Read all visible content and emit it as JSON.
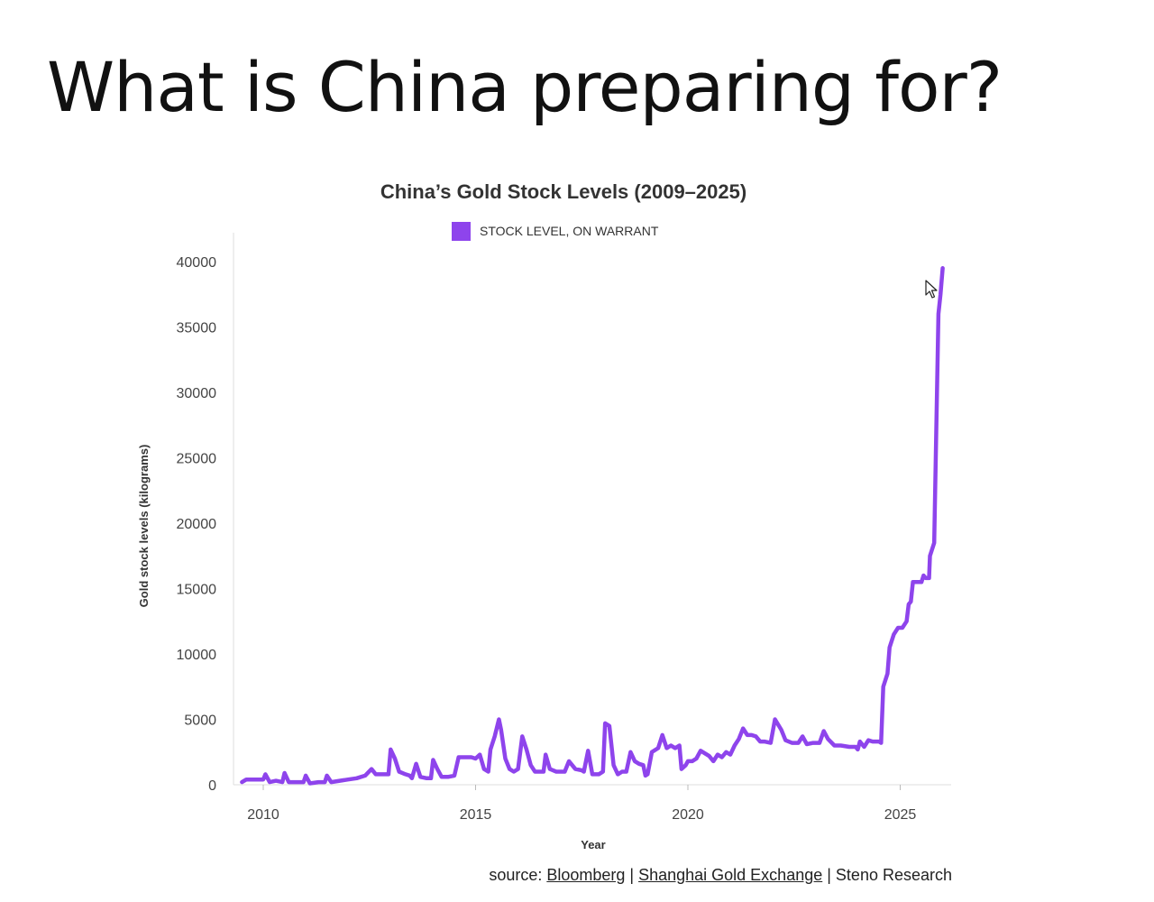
{
  "slide": {
    "title": "What is China preparing for?"
  },
  "colors": {
    "series": "#8e44ec",
    "axis": "#dddddd"
  },
  "source": {
    "prefix": "source: ",
    "links": [
      "Bloomberg",
      "Shanghai Gold Exchange"
    ],
    "separator": " | ",
    "suffix": "Steno Research"
  },
  "chart_data": {
    "type": "line",
    "title": "China’s Gold Stock Levels (2009–2025)",
    "xlabel": "Year",
    "ylabel": "Gold stock levels (kilograms)",
    "xlim": [
      2009.4,
      2026.2
    ],
    "ylim": [
      0,
      40000
    ],
    "xticks": [
      2010,
      2015,
      2020,
      2025
    ],
    "yticks": [
      0,
      5000,
      10000,
      15000,
      20000,
      25000,
      30000,
      35000,
      40000
    ],
    "grid": false,
    "legend": "top-center",
    "series": [
      {
        "name": "STOCK LEVEL, ON WARRANT",
        "points": [
          [
            2009.5,
            200
          ],
          [
            2009.6,
            400
          ],
          [
            2009.8,
            400
          ],
          [
            2010.0,
            400
          ],
          [
            2010.05,
            800
          ],
          [
            2010.15,
            200
          ],
          [
            2010.3,
            300
          ],
          [
            2010.45,
            200
          ],
          [
            2010.5,
            900
          ],
          [
            2010.6,
            200
          ],
          [
            2010.8,
            200
          ],
          [
            2010.95,
            200
          ],
          [
            2011.0,
            700
          ],
          [
            2011.1,
            100
          ],
          [
            2011.3,
            200
          ],
          [
            2011.45,
            200
          ],
          [
            2011.5,
            700
          ],
          [
            2011.6,
            200
          ],
          [
            2011.8,
            300
          ],
          [
            2012.0,
            400
          ],
          [
            2012.2,
            500
          ],
          [
            2012.4,
            700
          ],
          [
            2012.55,
            1200
          ],
          [
            2012.65,
            800
          ],
          [
            2012.8,
            800
          ],
          [
            2012.95,
            800
          ],
          [
            2013.0,
            2700
          ],
          [
            2013.1,
            2000
          ],
          [
            2013.2,
            1000
          ],
          [
            2013.35,
            800
          ],
          [
            2013.45,
            700
          ],
          [
            2013.5,
            500
          ],
          [
            2013.6,
            1600
          ],
          [
            2013.7,
            600
          ],
          [
            2013.85,
            500
          ],
          [
            2013.95,
            500
          ],
          [
            2014.0,
            1900
          ],
          [
            2014.1,
            1200
          ],
          [
            2014.2,
            600
          ],
          [
            2014.35,
            600
          ],
          [
            2014.5,
            700
          ],
          [
            2014.6,
            2100
          ],
          [
            2014.75,
            2100
          ],
          [
            2014.9,
            2100
          ],
          [
            2015.0,
            2000
          ],
          [
            2015.1,
            2300
          ],
          [
            2015.2,
            1200
          ],
          [
            2015.3,
            1000
          ],
          [
            2015.35,
            2700
          ],
          [
            2015.45,
            3700
          ],
          [
            2015.55,
            5000
          ],
          [
            2015.6,
            4200
          ],
          [
            2015.7,
            2000
          ],
          [
            2015.8,
            1200
          ],
          [
            2015.9,
            1000
          ],
          [
            2016.0,
            1200
          ],
          [
            2016.1,
            3700
          ],
          [
            2016.2,
            2700
          ],
          [
            2016.3,
            1500
          ],
          [
            2016.4,
            1000
          ],
          [
            2016.5,
            1000
          ],
          [
            2016.6,
            1000
          ],
          [
            2016.65,
            2300
          ],
          [
            2016.75,
            1200
          ],
          [
            2016.9,
            1000
          ],
          [
            2017.0,
            1000
          ],
          [
            2017.1,
            1000
          ],
          [
            2017.2,
            1800
          ],
          [
            2017.35,
            1200
          ],
          [
            2017.5,
            1100
          ],
          [
            2017.55,
            1000
          ],
          [
            2017.65,
            2600
          ],
          [
            2017.75,
            800
          ],
          [
            2017.9,
            800
          ],
          [
            2018.0,
            1000
          ],
          [
            2018.05,
            4700
          ],
          [
            2018.15,
            4500
          ],
          [
            2018.25,
            1500
          ],
          [
            2018.35,
            800
          ],
          [
            2018.45,
            1000
          ],
          [
            2018.55,
            1000
          ],
          [
            2018.65,
            2500
          ],
          [
            2018.75,
            1800
          ],
          [
            2018.85,
            1600
          ],
          [
            2018.95,
            1500
          ],
          [
            2019.0,
            700
          ],
          [
            2019.05,
            800
          ],
          [
            2019.15,
            2500
          ],
          [
            2019.3,
            2800
          ],
          [
            2019.4,
            3800
          ],
          [
            2019.5,
            2800
          ],
          [
            2019.6,
            3000
          ],
          [
            2019.7,
            2800
          ],
          [
            2019.8,
            3000
          ],
          [
            2019.85,
            1200
          ],
          [
            2019.95,
            1500
          ],
          [
            2020.0,
            1800
          ],
          [
            2020.1,
            1800
          ],
          [
            2020.2,
            2000
          ],
          [
            2020.3,
            2600
          ],
          [
            2020.4,
            2400
          ],
          [
            2020.5,
            2200
          ],
          [
            2020.6,
            1800
          ],
          [
            2020.7,
            2300
          ],
          [
            2020.8,
            2100
          ],
          [
            2020.9,
            2500
          ],
          [
            2021.0,
            2300
          ],
          [
            2021.1,
            3000
          ],
          [
            2021.2,
            3500
          ],
          [
            2021.3,
            4300
          ],
          [
            2021.4,
            3800
          ],
          [
            2021.5,
            3800
          ],
          [
            2021.6,
            3700
          ],
          [
            2021.7,
            3300
          ],
          [
            2021.8,
            3300
          ],
          [
            2021.95,
            3200
          ],
          [
            2022.05,
            5000
          ],
          [
            2022.2,
            4200
          ],
          [
            2022.3,
            3400
          ],
          [
            2022.45,
            3200
          ],
          [
            2022.6,
            3200
          ],
          [
            2022.7,
            3700
          ],
          [
            2022.8,
            3100
          ],
          [
            2022.95,
            3200
          ],
          [
            2023.1,
            3200
          ],
          [
            2023.2,
            4100
          ],
          [
            2023.3,
            3500
          ],
          [
            2023.45,
            3000
          ],
          [
            2023.6,
            3000
          ],
          [
            2023.8,
            2900
          ],
          [
            2023.95,
            2900
          ],
          [
            2024.0,
            2700
          ],
          [
            2024.05,
            3300
          ],
          [
            2024.15,
            2900
          ],
          [
            2024.25,
            3400
          ],
          [
            2024.35,
            3300
          ],
          [
            2024.5,
            3300
          ],
          [
            2024.55,
            3200
          ],
          [
            2024.6,
            7500
          ],
          [
            2024.7,
            8500
          ],
          [
            2024.75,
            10500
          ],
          [
            2024.85,
            11500
          ],
          [
            2024.95,
            12000
          ],
          [
            2025.05,
            12000
          ],
          [
            2025.15,
            12500
          ],
          [
            2025.2,
            13800
          ],
          [
            2025.25,
            14000
          ],
          [
            2025.3,
            15500
          ],
          [
            2025.4,
            15500
          ],
          [
            2025.5,
            15500
          ],
          [
            2025.55,
            16000
          ],
          [
            2025.6,
            15800
          ],
          [
            2025.68,
            15800
          ],
          [
            2025.7,
            17500
          ],
          [
            2025.8,
            18500
          ],
          [
            2025.9,
            36000
          ],
          [
            2025.95,
            37500
          ],
          [
            2026.0,
            39500
          ]
        ]
      }
    ]
  }
}
